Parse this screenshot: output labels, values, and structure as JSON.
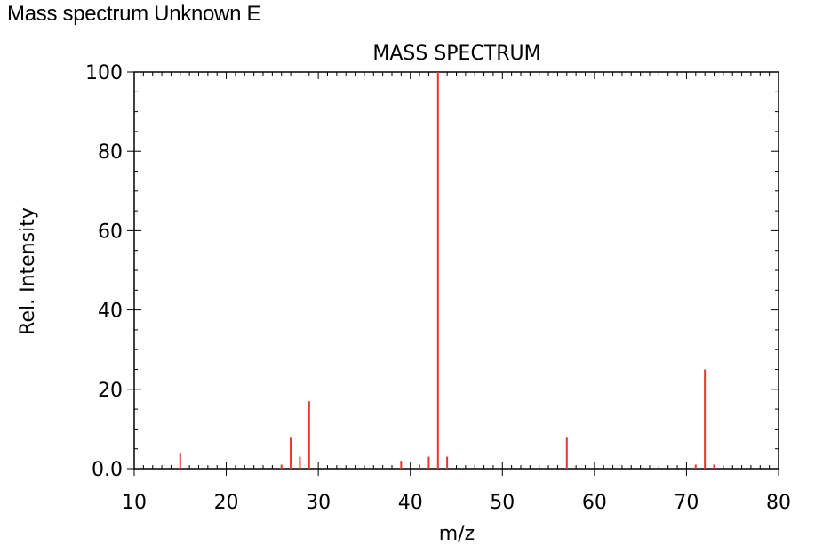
{
  "page": {
    "heading": "Mass spectrum Unknown E"
  },
  "chart_data": {
    "type": "bar",
    "title": "MASS SPECTRUM",
    "xlabel": "m/z",
    "ylabel": "Rel. Intensity",
    "xlim": [
      10,
      80
    ],
    "ylim": [
      0,
      100
    ],
    "xticks": [
      10,
      20,
      30,
      40,
      50,
      60,
      70,
      80
    ],
    "yticks": [
      0,
      20,
      40,
      60,
      80,
      100
    ],
    "ytick_labels": [
      "0.0",
      "20",
      "40",
      "60",
      "80",
      "100"
    ],
    "grid": false,
    "bar_color": "#e8352b",
    "peaks": [
      {
        "mz": 15,
        "intensity": 4
      },
      {
        "mz": 26,
        "intensity": 1
      },
      {
        "mz": 27,
        "intensity": 8
      },
      {
        "mz": 28,
        "intensity": 3
      },
      {
        "mz": 29,
        "intensity": 17
      },
      {
        "mz": 39,
        "intensity": 2
      },
      {
        "mz": 41,
        "intensity": 1
      },
      {
        "mz": 42,
        "intensity": 3
      },
      {
        "mz": 43,
        "intensity": 100
      },
      {
        "mz": 44,
        "intensity": 3
      },
      {
        "mz": 57,
        "intensity": 8
      },
      {
        "mz": 71,
        "intensity": 1
      },
      {
        "mz": 72,
        "intensity": 25
      },
      {
        "mz": 73,
        "intensity": 1
      }
    ]
  }
}
